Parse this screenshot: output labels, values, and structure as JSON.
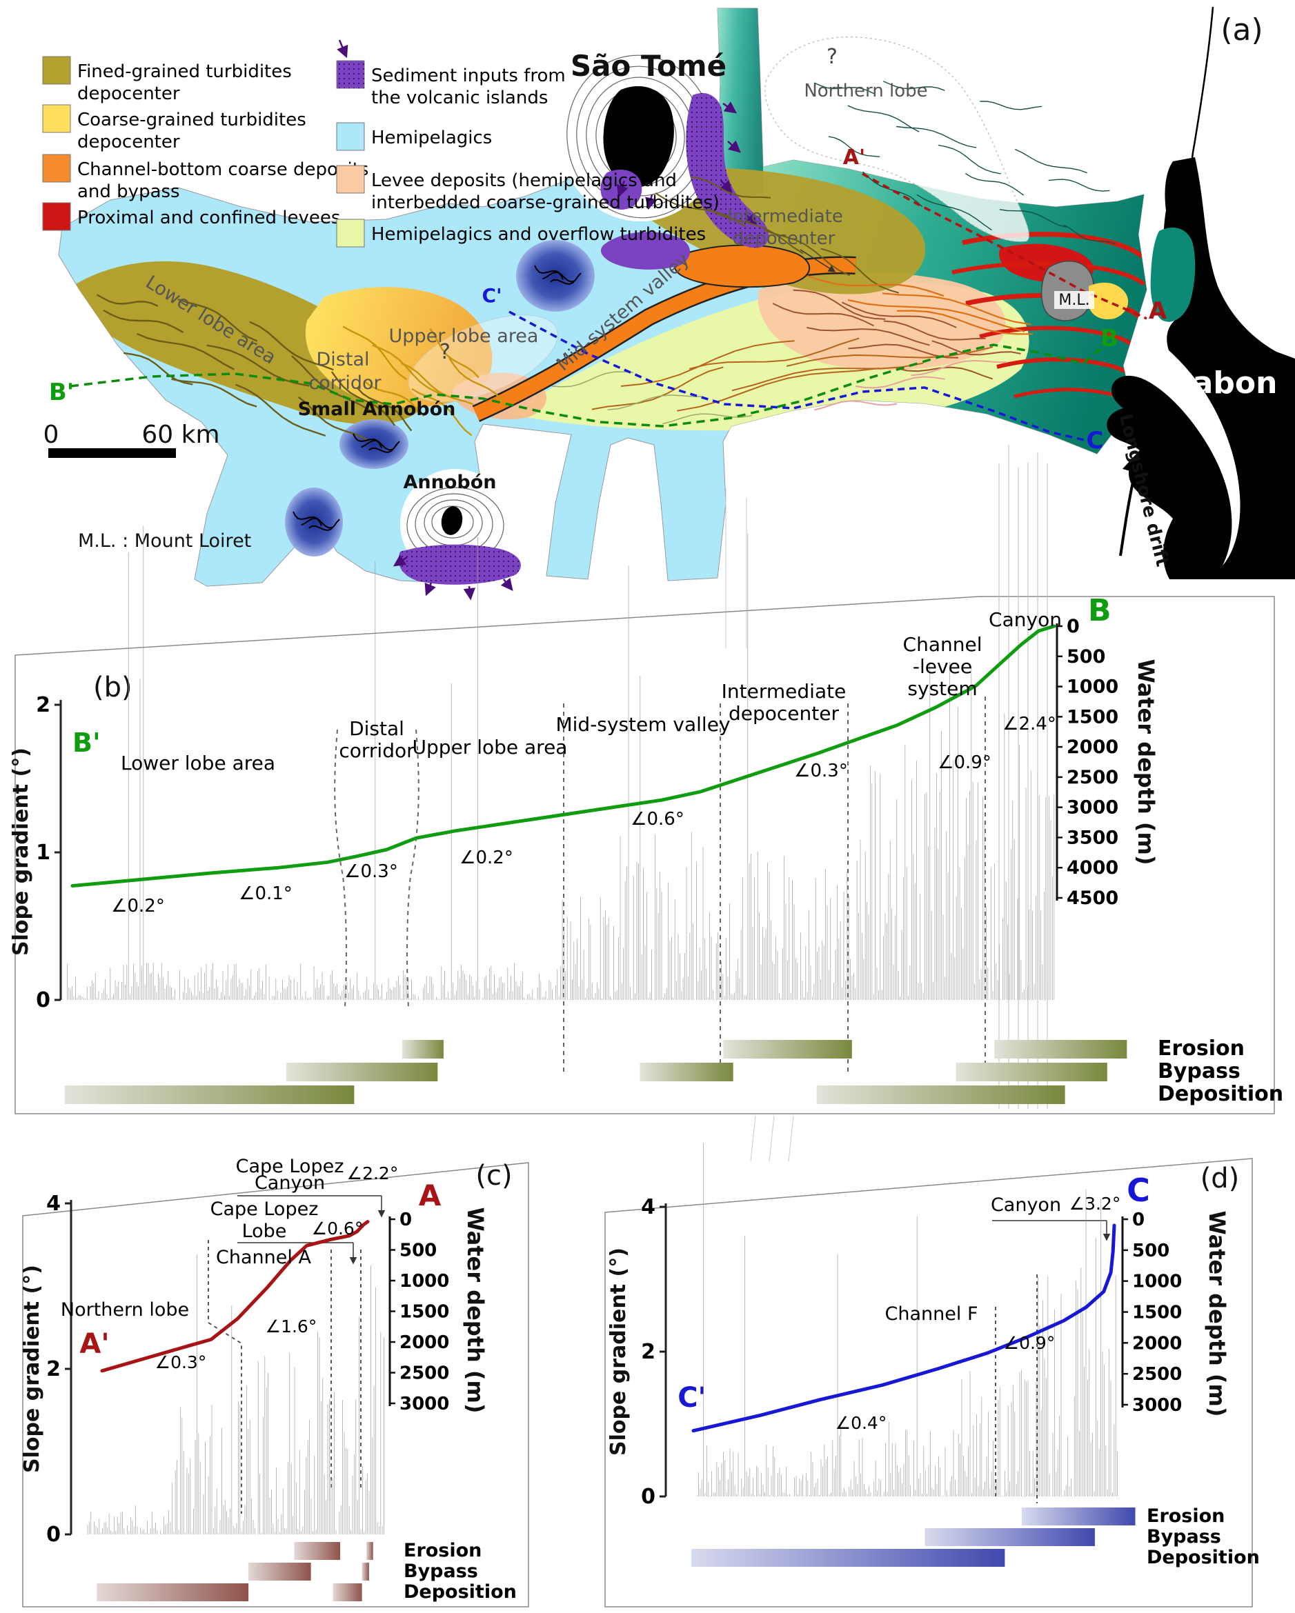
{
  "figure": {
    "panel_labels": {
      "a": "(a)",
      "b": "(b)",
      "c": "(c)",
      "d": "(d)"
    }
  },
  "legend": {
    "items": [
      {
        "name": "fine-grained-turbidites-depocenter",
        "line1": "Fined-grained turbidites",
        "line2": "depocenter",
        "color": "#b3a02f"
      },
      {
        "name": "coarse-grained-turbidites-depocenter",
        "line1": "Coarse-grained turbidites",
        "line2": "depocenter",
        "color": "#ffdf5e"
      },
      {
        "name": "channel-bottom-coarse-deposits",
        "line1": "Channel-bottom coarse deposits",
        "line2": "and bypass",
        "color": "#f68b2c"
      },
      {
        "name": "proximal-confined-levees",
        "line1": "Proximal and confined levees",
        "line2": "",
        "color": "#cf1616"
      },
      {
        "name": "sediment-inputs-volcanic-islands",
        "line1": "Sediment inputs from",
        "line2": "the volcanic islands",
        "color": "#7b42c2"
      },
      {
        "name": "hemipelagics",
        "line1": "Hemipelagics",
        "line2": "",
        "color": "#ade8fa"
      },
      {
        "name": "levee-deposits",
        "line1": "Levee deposits (hemipelagics and",
        "line2": "interbedded coarse-grained turbidites)",
        "color": "#fbc9a2"
      },
      {
        "name": "hemipelagics-overflow-turbidites",
        "line1": "Hemipelagics and overflow turbidites",
        "line2": "",
        "color": "#e9f7a9"
      }
    ]
  },
  "map": {
    "islands": {
      "sao_tome": "São Tomé",
      "small_annobon": "Small Annobón",
      "annobon": "Annobón"
    },
    "labels": {
      "northern_lobe": "Northern lobe",
      "intermediate_1": "Intermediate",
      "intermediate_2": "depocenter",
      "mid_system_valley": "Mid-system valley",
      "upper_lobe": "Upper lobe area",
      "distal_1": "Distal",
      "distal_2": "corridor",
      "lower_lobe": "Lower lobe area",
      "gabon": "Gabon",
      "longshore_drift": "Longshore drift",
      "ml": "M.L.",
      "question_mark": "?"
    },
    "profile_points": {
      "a_start": "A'",
      "a_end": "A",
      "b_start": "B'",
      "b_end": "B",
      "c_start": "C'",
      "c_end": "C"
    },
    "scale": {
      "zero": "0",
      "label": "60 km"
    },
    "caption": "M.L. : Mount Loiret",
    "colors": {
      "profile_a": "#a81313",
      "profile_b": "#0f9d0f",
      "profile_c": "#1717d6",
      "land": "#000000",
      "hemipelagic": "#ade8fa",
      "teal_coast": "#0c8f7b"
    }
  },
  "chart_data": [
    {
      "panel": "b",
      "type": "line",
      "profile": "B' to B",
      "ylabel_left": "Slope gradient (°)",
      "ylabel_right": "Water depth (m)",
      "ylim_left": [
        0,
        2
      ],
      "ylim_right": [
        0,
        4500
      ],
      "yticks_left": [
        0,
        1,
        2
      ],
      "yticks_right": [
        0,
        500,
        1000,
        1500,
        2000,
        2500,
        3000,
        3500,
        4000,
        4500
      ],
      "start": "B'",
      "end": "B",
      "line_color": "#0f9d0f",
      "depth_profile": [
        [
          0,
          4300
        ],
        [
          0.06,
          4210
        ],
        [
          0.14,
          4090
        ],
        [
          0.21,
          4000
        ],
        [
          0.26,
          3910
        ],
        [
          0.29,
          3810
        ],
        [
          0.32,
          3700
        ],
        [
          0.35,
          3510
        ],
        [
          0.39,
          3390
        ],
        [
          0.46,
          3220
        ],
        [
          0.53,
          3050
        ],
        [
          0.6,
          2880
        ],
        [
          0.64,
          2740
        ],
        [
          0.7,
          2420
        ],
        [
          0.76,
          2100
        ],
        [
          0.8,
          1870
        ],
        [
          0.84,
          1640
        ],
        [
          0.88,
          1340
        ],
        [
          0.92,
          990
        ],
        [
          0.945,
          620
        ],
        [
          0.966,
          310
        ],
        [
          0.984,
          80
        ],
        [
          1,
          0
        ]
      ],
      "zone_boundaries_f": [
        0.27,
        0.35,
        0.5,
        0.66,
        0.79,
        0.93
      ],
      "zones": [
        {
          "label": [
            "Lower lobe area"
          ]
        },
        {
          "label": [
            "Distal",
            "corridor"
          ]
        },
        {
          "label": [
            "Upper lobe area"
          ]
        },
        {
          "label": [
            "Mid-system valley"
          ]
        },
        {
          "label": [
            "Intermediate",
            "depocenter"
          ]
        },
        {
          "label": [
            "Channel",
            "-levee",
            "system"
          ]
        },
        {
          "label": [
            "Canyon"
          ]
        }
      ],
      "angles": [
        {
          "value": "0.2°"
        },
        {
          "value": "0.1°"
        },
        {
          "value": "0.3°"
        },
        {
          "value": "0.2°"
        },
        {
          "value": "0.6°"
        },
        {
          "value": "0.3°"
        },
        {
          "value": "0.9°"
        },
        {
          "value": "2.4°"
        }
      ],
      "bar_labels": [
        "Erosion",
        "Bypass",
        "Deposition"
      ],
      "bars": {
        "erosion": [
          [
            0.336,
            0.378
          ],
          [
            0.663,
            0.794
          ],
          [
            0.939,
            1.074
          ]
        ],
        "bypass": [
          [
            0.218,
            0.372
          ],
          [
            0.578,
            0.673
          ],
          [
            0.9,
            1.054
          ]
        ],
        "deposition": [
          [
            -0.008,
            0.287
          ],
          [
            0.758,
            1.011
          ]
        ]
      }
    },
    {
      "panel": "c",
      "type": "line",
      "profile": "A' to A",
      "ylabel_left": "Slope gradient (°)",
      "ylabel_right": "Water depth (m)",
      "ylim_left": [
        0,
        4
      ],
      "ylim_right": [
        0,
        3000
      ],
      "yticks_left": [
        0,
        2,
        4
      ],
      "yticks_right": [
        0,
        500,
        1000,
        1500,
        2000,
        2500,
        3000
      ],
      "start": "A'",
      "end": "A",
      "line_color": "#a81313",
      "depth_profile": [
        [
          0,
          2470
        ],
        [
          0.16,
          2270
        ],
        [
          0.32,
          2070
        ],
        [
          0.41,
          1960
        ],
        [
          0.51,
          1620
        ],
        [
          0.62,
          1120
        ],
        [
          0.71,
          670
        ],
        [
          0.77,
          430
        ],
        [
          0.86,
          330
        ],
        [
          0.93,
          270
        ],
        [
          0.96,
          200
        ],
        [
          0.984,
          90
        ],
        [
          1,
          40
        ]
      ],
      "zones": [
        {
          "label": [
            "Northern lobe"
          ]
        },
        {
          "label": [
            "Channel A"
          ]
        },
        {
          "label": [
            "Cape Lopez",
            "Lobe"
          ]
        },
        {
          "label": [
            "Cape Lopez",
            "Canyon"
          ]
        }
      ],
      "angles": [
        {
          "value": "0.3°"
        },
        {
          "value": "1.6°"
        },
        {
          "value": "0.6°"
        },
        {
          "value": "2.2°"
        }
      ],
      "bar_labels": [
        "Erosion",
        "Bypass",
        "Deposition"
      ],
      "bars": {
        "erosion": [
          [
            0.723,
            0.896
          ],
          [
            0.995,
            1.02
          ]
        ],
        "bypass": [
          [
            0.551,
            0.786
          ],
          [
            0.978,
            1.005
          ]
        ],
        "deposition": [
          [
            -0.02,
            0.551
          ],
          [
            0.869,
            0.978
          ]
        ]
      }
    },
    {
      "panel": "d",
      "type": "line",
      "profile": "C' to C",
      "ylabel_left": "Slope gradient (°)",
      "ylabel_right": "Water depth (m)",
      "ylim_left": [
        0,
        4
      ],
      "ylim_right": [
        0,
        3000
      ],
      "yticks_left": [
        0,
        2,
        4
      ],
      "yticks_right": [
        0,
        500,
        1000,
        1500,
        2000,
        2500,
        3000
      ],
      "start": "C'",
      "end": "C",
      "line_color": "#1717d6",
      "depth_profile": [
        [
          0,
          3420
        ],
        [
          0.16,
          3170
        ],
        [
          0.3,
          2920
        ],
        [
          0.45,
          2680
        ],
        [
          0.58,
          2420
        ],
        [
          0.7,
          2160
        ],
        [
          0.795,
          1900
        ],
        [
          0.88,
          1640
        ],
        [
          0.934,
          1420
        ],
        [
          0.975,
          1170
        ],
        [
          0.992,
          860
        ],
        [
          0.997,
          520
        ],
        [
          1,
          100
        ]
      ],
      "zones": [
        {
          "label": [
            "Channel F"
          ]
        },
        {
          "label": [
            "Canyon"
          ]
        }
      ],
      "angles": [
        {
          "value": "0.4°"
        },
        {
          "value": "0.9°"
        },
        {
          "value": "3.2°"
        }
      ],
      "bar_labels": [
        "Erosion",
        "Bypass",
        "Deposition"
      ],
      "bars": {
        "erosion": [
          [
            0.78,
            1.05
          ]
        ],
        "bypass": [
          [
            0.55,
            0.954
          ]
        ],
        "deposition": [
          [
            -0.005,
            0.74
          ]
        ]
      }
    }
  ]
}
